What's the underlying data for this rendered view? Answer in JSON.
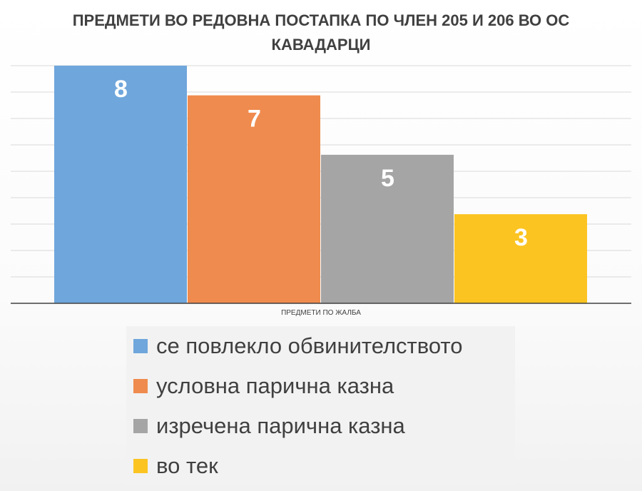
{
  "chart_data": {
    "type": "bar",
    "title": "ПРЕДМЕТИ ВО РЕДОВНА ПОСТАПКА ПО ЧЛЕН 205 И 206 ВО ОС КАВАДАРЦИ",
    "xlabel": "ПРЕДМЕТИ ПО ЖАЛБА",
    "ylabel": "",
    "ylim": [
      0,
      8
    ],
    "grid": true,
    "legend_position": "bottom",
    "categories": [
      "ПРЕДМЕТИ ПО ЖАЛБА"
    ],
    "series": [
      {
        "name": "се повлекло обвинителството",
        "values": [
          8
        ],
        "color": "#6fa6dc"
      },
      {
        "name": "условна парична казна",
        "values": [
          7
        ],
        "color": "#ef8b4e"
      },
      {
        "name": "изречена парична казна",
        "values": [
          5
        ],
        "color": "#a5a5a5"
      },
      {
        "name": "во тек",
        "values": [
          3
        ],
        "color": "#fbc421"
      }
    ]
  }
}
